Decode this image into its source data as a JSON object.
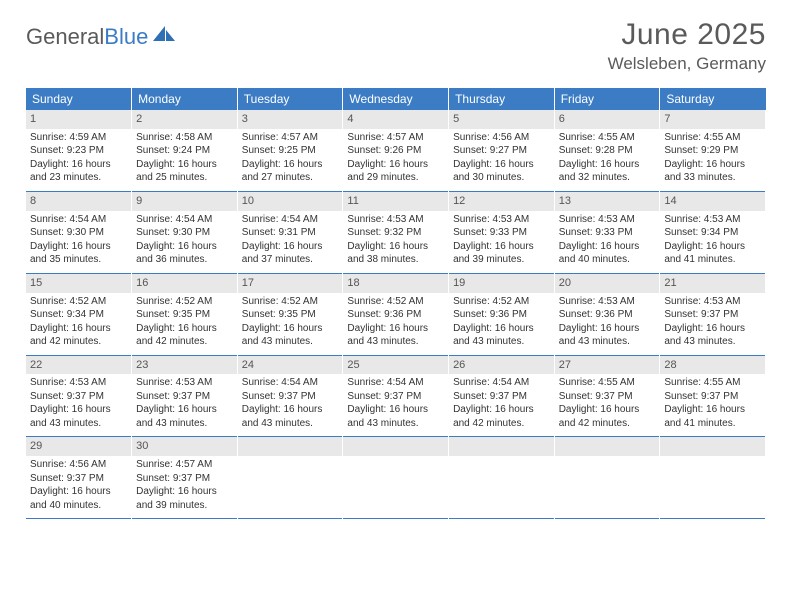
{
  "brand": {
    "word1": "General",
    "word2": "Blue"
  },
  "title": "June 2025",
  "location": "Welsleben, Germany",
  "colors": {
    "header_bg": "#3b7cc4",
    "daynum_bg": "#e8e8e8",
    "text": "#333333",
    "title_text": "#5a5a5a"
  },
  "weekdays": [
    "Sunday",
    "Monday",
    "Tuesday",
    "Wednesday",
    "Thursday",
    "Friday",
    "Saturday"
  ],
  "calendar": {
    "type": "table",
    "columns": 7,
    "weeks": [
      [
        {
          "n": "1",
          "sr": "4:59 AM",
          "ss": "9:23 PM",
          "dl": "16 hours and 23 minutes."
        },
        {
          "n": "2",
          "sr": "4:58 AM",
          "ss": "9:24 PM",
          "dl": "16 hours and 25 minutes."
        },
        {
          "n": "3",
          "sr": "4:57 AM",
          "ss": "9:25 PM",
          "dl": "16 hours and 27 minutes."
        },
        {
          "n": "4",
          "sr": "4:57 AM",
          "ss": "9:26 PM",
          "dl": "16 hours and 29 minutes."
        },
        {
          "n": "5",
          "sr": "4:56 AM",
          "ss": "9:27 PM",
          "dl": "16 hours and 30 minutes."
        },
        {
          "n": "6",
          "sr": "4:55 AM",
          "ss": "9:28 PM",
          "dl": "16 hours and 32 minutes."
        },
        {
          "n": "7",
          "sr": "4:55 AM",
          "ss": "9:29 PM",
          "dl": "16 hours and 33 minutes."
        }
      ],
      [
        {
          "n": "8",
          "sr": "4:54 AM",
          "ss": "9:30 PM",
          "dl": "16 hours and 35 minutes."
        },
        {
          "n": "9",
          "sr": "4:54 AM",
          "ss": "9:30 PM",
          "dl": "16 hours and 36 minutes."
        },
        {
          "n": "10",
          "sr": "4:54 AM",
          "ss": "9:31 PM",
          "dl": "16 hours and 37 minutes."
        },
        {
          "n": "11",
          "sr": "4:53 AM",
          "ss": "9:32 PM",
          "dl": "16 hours and 38 minutes."
        },
        {
          "n": "12",
          "sr": "4:53 AM",
          "ss": "9:33 PM",
          "dl": "16 hours and 39 minutes."
        },
        {
          "n": "13",
          "sr": "4:53 AM",
          "ss": "9:33 PM",
          "dl": "16 hours and 40 minutes."
        },
        {
          "n": "14",
          "sr": "4:53 AM",
          "ss": "9:34 PM",
          "dl": "16 hours and 41 minutes."
        }
      ],
      [
        {
          "n": "15",
          "sr": "4:52 AM",
          "ss": "9:34 PM",
          "dl": "16 hours and 42 minutes."
        },
        {
          "n": "16",
          "sr": "4:52 AM",
          "ss": "9:35 PM",
          "dl": "16 hours and 42 minutes."
        },
        {
          "n": "17",
          "sr": "4:52 AM",
          "ss": "9:35 PM",
          "dl": "16 hours and 43 minutes."
        },
        {
          "n": "18",
          "sr": "4:52 AM",
          "ss": "9:36 PM",
          "dl": "16 hours and 43 minutes."
        },
        {
          "n": "19",
          "sr": "4:52 AM",
          "ss": "9:36 PM",
          "dl": "16 hours and 43 minutes."
        },
        {
          "n": "20",
          "sr": "4:53 AM",
          "ss": "9:36 PM",
          "dl": "16 hours and 43 minutes."
        },
        {
          "n": "21",
          "sr": "4:53 AM",
          "ss": "9:37 PM",
          "dl": "16 hours and 43 minutes."
        }
      ],
      [
        {
          "n": "22",
          "sr": "4:53 AM",
          "ss": "9:37 PM",
          "dl": "16 hours and 43 minutes."
        },
        {
          "n": "23",
          "sr": "4:53 AM",
          "ss": "9:37 PM",
          "dl": "16 hours and 43 minutes."
        },
        {
          "n": "24",
          "sr": "4:54 AM",
          "ss": "9:37 PM",
          "dl": "16 hours and 43 minutes."
        },
        {
          "n": "25",
          "sr": "4:54 AM",
          "ss": "9:37 PM",
          "dl": "16 hours and 43 minutes."
        },
        {
          "n": "26",
          "sr": "4:54 AM",
          "ss": "9:37 PM",
          "dl": "16 hours and 42 minutes."
        },
        {
          "n": "27",
          "sr": "4:55 AM",
          "ss": "9:37 PM",
          "dl": "16 hours and 42 minutes."
        },
        {
          "n": "28",
          "sr": "4:55 AM",
          "ss": "9:37 PM",
          "dl": "16 hours and 41 minutes."
        }
      ],
      [
        {
          "n": "29",
          "sr": "4:56 AM",
          "ss": "9:37 PM",
          "dl": "16 hours and 40 minutes."
        },
        {
          "n": "30",
          "sr": "4:57 AM",
          "ss": "9:37 PM",
          "dl": "16 hours and 39 minutes."
        },
        null,
        null,
        null,
        null,
        null
      ]
    ]
  },
  "labels": {
    "sunrise": "Sunrise:",
    "sunset": "Sunset:",
    "daylight": "Daylight:"
  }
}
